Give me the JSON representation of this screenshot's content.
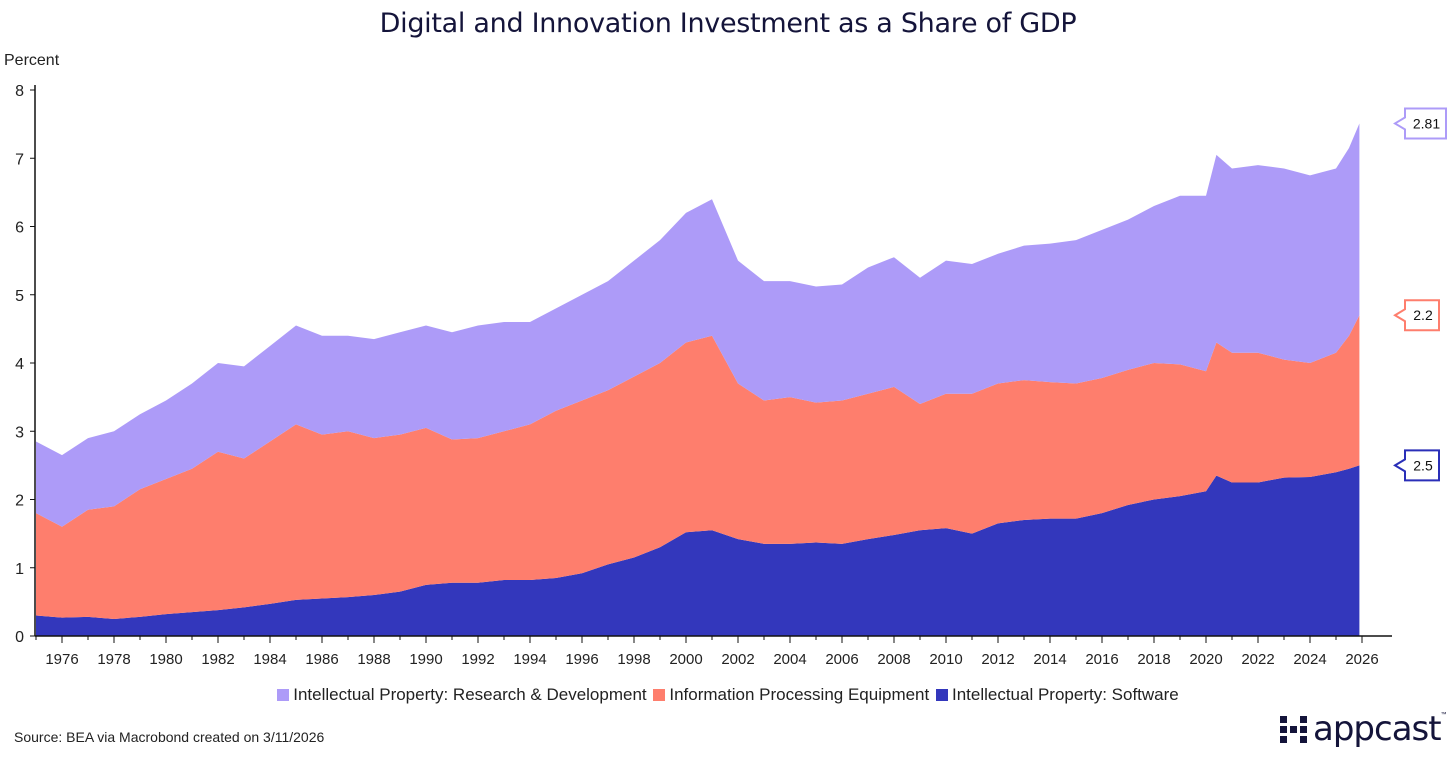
{
  "chart_data": {
    "type": "area",
    "stacked": true,
    "title": "Digital and Innovation Investment as a Share of GDP",
    "ylabel": "Percent",
    "xlabel": "",
    "ylim": [
      0,
      8
    ],
    "xlim": [
      1975,
      2026.3
    ],
    "yticks": [
      0,
      1,
      2,
      3,
      4,
      5,
      6,
      7,
      8
    ],
    "xticks": [
      1976,
      1978,
      1980,
      1982,
      1984,
      1986,
      1988,
      1990,
      1992,
      1994,
      1996,
      1998,
      2000,
      2002,
      2004,
      2006,
      2008,
      2010,
      2012,
      2014,
      2016,
      2018,
      2020,
      2022,
      2024,
      2026
    ],
    "grid": false,
    "legend_position": "bottom",
    "x": [
      1975,
      1976,
      1977,
      1978,
      1979,
      1980,
      1981,
      1982,
      1983,
      1984,
      1985,
      1986,
      1987,
      1988,
      1989,
      1990,
      1991,
      1992,
      1993,
      1994,
      1995,
      1996,
      1997,
      1998,
      1999,
      2000,
      2001,
      2002,
      2003,
      2004,
      2005,
      2006,
      2007,
      2008,
      2009,
      2010,
      2011,
      2012,
      2013,
      2014,
      2015,
      2016,
      2017,
      2018,
      2019,
      2020,
      2020.4,
      2021,
      2022,
      2023,
      2024,
      2025,
      2025.5,
      2025.9
    ],
    "series": [
      {
        "name": "Intellectual Property: Software",
        "color": "#3337bc",
        "values": [
          0.3,
          0.27,
          0.28,
          0.25,
          0.28,
          0.32,
          0.35,
          0.38,
          0.42,
          0.47,
          0.53,
          0.55,
          0.57,
          0.6,
          0.65,
          0.75,
          0.78,
          0.78,
          0.82,
          0.82,
          0.85,
          0.92,
          1.05,
          1.15,
          1.3,
          1.52,
          1.55,
          1.42,
          1.35,
          1.35,
          1.37,
          1.35,
          1.42,
          1.48,
          1.55,
          1.58,
          1.5,
          1.65,
          1.7,
          1.72,
          1.72,
          1.8,
          1.92,
          2.0,
          2.05,
          2.12,
          2.35,
          2.25,
          2.25,
          2.32,
          2.33,
          2.4,
          2.45,
          2.5
        ]
      },
      {
        "name": "Information Processing Equipment",
        "color": "#fe7e6d",
        "values": [
          1.5,
          1.33,
          1.57,
          1.65,
          1.87,
          1.98,
          2.1,
          2.32,
          2.18,
          2.38,
          2.57,
          2.4,
          2.43,
          2.3,
          2.3,
          2.3,
          2.1,
          2.12,
          2.18,
          2.28,
          2.45,
          2.53,
          2.55,
          2.65,
          2.7,
          2.78,
          2.85,
          2.28,
          2.1,
          2.15,
          2.05,
          2.1,
          2.13,
          2.17,
          1.85,
          1.97,
          2.05,
          2.05,
          2.05,
          2.0,
          1.98,
          1.98,
          1.98,
          2.0,
          1.93,
          1.76,
          1.95,
          1.9,
          1.9,
          1.73,
          1.67,
          1.75,
          1.95,
          2.2
        ]
      },
      {
        "name": "Intellectual Property: Research & Development",
        "color": "#ad9bf8",
        "values": [
          1.05,
          1.05,
          1.05,
          1.1,
          1.1,
          1.15,
          1.25,
          1.3,
          1.35,
          1.4,
          1.45,
          1.45,
          1.4,
          1.45,
          1.5,
          1.5,
          1.57,
          1.65,
          1.6,
          1.5,
          1.5,
          1.55,
          1.6,
          1.7,
          1.8,
          1.9,
          2.0,
          1.8,
          1.75,
          1.7,
          1.7,
          1.7,
          1.85,
          1.9,
          1.85,
          1.95,
          1.9,
          1.9,
          1.97,
          2.03,
          2.1,
          2.17,
          2.2,
          2.3,
          2.47,
          2.57,
          2.75,
          2.7,
          2.75,
          2.8,
          2.75,
          2.7,
          2.75,
          2.81
        ]
      }
    ],
    "end_labels": [
      {
        "series": "Intellectual Property: Research & Development",
        "text": "2.81",
        "color": "#ad9bf8"
      },
      {
        "series": "Information Processing Equipment",
        "text": "2.2",
        "color": "#fe7e6d"
      },
      {
        "series": "Intellectual Property: Software",
        "text": "2.5",
        "color": "#2a2fb8"
      }
    ],
    "legend": [
      {
        "label": "Intellectual Property: Research & Development",
        "color": "#ad9bf8"
      },
      {
        "label": "Information Processing Equipment",
        "color": "#fe7e6d"
      },
      {
        "label": "Intellectual Property: Software",
        "color": "#3337bc"
      }
    ]
  },
  "footer": {
    "source": "Source: BEA via Macrobond created on 3/11/2026",
    "logo_text": "appcast",
    "logo_tm": "™"
  }
}
